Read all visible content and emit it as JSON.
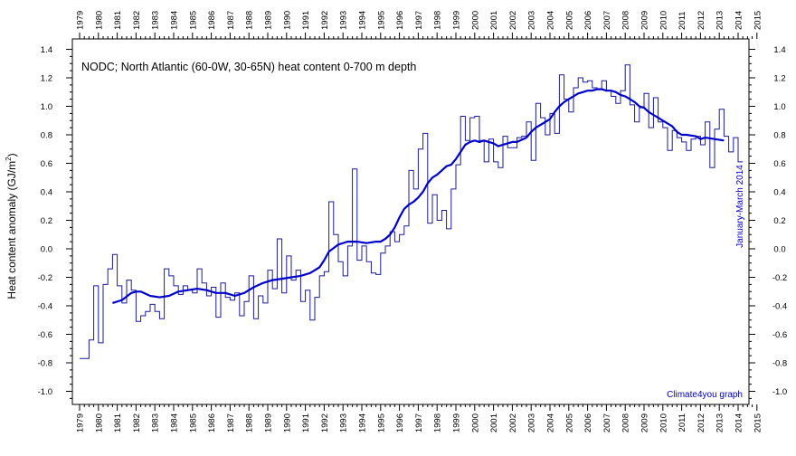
{
  "chart_data": {
    "type": "line",
    "title": "NODC; North Atlantic (60-0W, 30-65N) heat content 0-700 m depth",
    "ylabel": "Heat content anomaly (GJ/m²)",
    "ylabel_main": "Heat content anomaly (GJ/m",
    "ylabel_sup": "2",
    "ylabel_end": ")",
    "credit": "Climate4you graph",
    "annotation": "January-March 2014",
    "xlim": [
      1979,
      2015
    ],
    "ylim": [
      -1.1,
      1.4
    ],
    "grid": false,
    "x_ticks": [
      "1979",
      "1980",
      "1981",
      "1982",
      "1983",
      "1984",
      "1985",
      "1986",
      "1987",
      "1988",
      "1989",
      "1990",
      "1991",
      "1992",
      "1993",
      "1994",
      "1995",
      "1996",
      "1997",
      "1998",
      "1999",
      "2000",
      "2001",
      "2002",
      "2003",
      "2004",
      "2005",
      "2006",
      "2007",
      "2008",
      "2009",
      "2010",
      "2011",
      "2012",
      "2013",
      "2014",
      "2015"
    ],
    "y_ticks": [
      "1.4",
      "1.2",
      "1.0",
      "0.8",
      "0.6",
      "0.4",
      "0.2",
      "0.0",
      "-0.2",
      "-0.4",
      "-0.6",
      "-0.8",
      "-1.0"
    ],
    "series": [
      {
        "style": "step",
        "color": "#1a1aa0",
        "x": [
          1979.0,
          1979.25,
          1979.5,
          1979.75,
          1980.0,
          1980.25,
          1980.5,
          1980.75,
          1981.0,
          1981.25,
          1981.5,
          1981.75,
          1982.0,
          1982.25,
          1982.5,
          1982.75,
          1983.0,
          1983.25,
          1983.5,
          1983.75,
          1984.0,
          1984.25,
          1984.5,
          1984.75,
          1985.0,
          1985.25,
          1985.5,
          1985.75,
          1986.0,
          1986.25,
          1986.5,
          1986.75,
          1987.0,
          1987.25,
          1987.5,
          1987.75,
          1988.0,
          1988.25,
          1988.5,
          1988.75,
          1989.0,
          1989.25,
          1989.5,
          1989.75,
          1990.0,
          1990.25,
          1990.5,
          1990.75,
          1991.0,
          1991.25,
          1991.5,
          1991.75,
          1992.0,
          1992.25,
          1992.5,
          1992.75,
          1993.0,
          1993.25,
          1993.5,
          1993.75,
          1994.0,
          1994.25,
          1994.5,
          1994.75,
          1995.0,
          1995.25,
          1995.5,
          1995.75,
          1996.0,
          1996.25,
          1996.5,
          1996.75,
          1997.0,
          1997.25,
          1997.5,
          1997.75,
          1998.0,
          1998.25,
          1998.5,
          1998.75,
          1999.0,
          1999.25,
          1999.5,
          1999.75,
          2000.0,
          2000.25,
          2000.5,
          2000.75,
          2001.0,
          2001.25,
          2001.5,
          2001.75,
          2002.0,
          2002.25,
          2002.5,
          2002.75,
          2003.0,
          2003.25,
          2003.5,
          2003.75,
          2004.0,
          2004.25,
          2004.5,
          2004.75,
          2005.0,
          2005.25,
          2005.5,
          2005.75,
          2006.0,
          2006.25,
          2006.5,
          2006.75,
          2007.0,
          2007.25,
          2007.5,
          2007.75,
          2008.0,
          2008.25,
          2008.5,
          2008.75,
          2009.0,
          2009.25,
          2009.5,
          2009.75,
          2010.0,
          2010.25,
          2010.5,
          2010.75,
          2011.0,
          2011.25,
          2011.5,
          2011.75,
          2012.0,
          2012.25,
          2012.5,
          2012.75,
          2013.0,
          2013.25,
          2013.5,
          2013.75,
          2014.0
        ],
        "values": [
          -0.77,
          -0.77,
          -0.64,
          -0.26,
          -0.66,
          -0.25,
          -0.14,
          -0.04,
          -0.26,
          -0.38,
          -0.22,
          -0.29,
          -0.51,
          -0.47,
          -0.44,
          -0.39,
          -0.44,
          -0.49,
          -0.14,
          -0.19,
          -0.26,
          -0.32,
          -0.26,
          -0.29,
          -0.31,
          -0.14,
          -0.24,
          -0.33,
          -0.27,
          -0.48,
          -0.24,
          -0.34,
          -0.36,
          -0.31,
          -0.47,
          -0.37,
          -0.19,
          -0.49,
          -0.33,
          -0.38,
          -0.15,
          -0.28,
          0.07,
          -0.31,
          -0.05,
          -0.22,
          -0.15,
          -0.37,
          -0.29,
          -0.5,
          -0.34,
          -0.19,
          -0.16,
          0.33,
          0.1,
          -0.09,
          -0.19,
          0.02,
          0.56,
          -0.08,
          0.02,
          -0.09,
          -0.17,
          -0.18,
          -0.03,
          0.02,
          0.12,
          0.05,
          0.1,
          0.16,
          0.55,
          0.42,
          0.7,
          0.81,
          0.18,
          0.38,
          0.2,
          0.27,
          0.14,
          0.42,
          0.59,
          0.93,
          0.76,
          0.92,
          0.93,
          0.76,
          0.61,
          0.77,
          0.61,
          0.57,
          0.79,
          0.71,
          0.71,
          0.78,
          0.79,
          0.89,
          0.62,
          1.02,
          0.92,
          0.8,
          0.95,
          0.81,
          1.22,
          1.05,
          0.96,
          1.13,
          1.2,
          1.17,
          1.18,
          1.13,
          1.12,
          1.18,
          1.11,
          1.07,
          1.02,
          1.11,
          1.29,
          1.01,
          0.89,
          0.99,
          1.09,
          0.85,
          1.06,
          0.89,
          0.85,
          0.69,
          0.83,
          0.78,
          0.75,
          0.69,
          0.77,
          0.79,
          0.73,
          0.89,
          0.57,
          0.84,
          0.98,
          0.79,
          0.68,
          0.78,
          0.61
        ]
      },
      {
        "style": "line",
        "color": "#0000cc",
        "x": [
          1980.75,
          1981.25,
          1981.75,
          1982.0,
          1982.25,
          1982.75,
          1983.25,
          1983.75,
          1984.25,
          1984.75,
          1985.25,
          1985.75,
          1986.25,
          1986.75,
          1987.25,
          1987.75,
          1988.25,
          1988.75,
          1989.25,
          1989.75,
          1990.25,
          1990.75,
          1991.25,
          1991.75,
          1992.0,
          1992.25,
          1992.75,
          1993.25,
          1993.75,
          1994.25,
          1994.75,
          1995.0,
          1995.25,
          1995.5,
          1995.75,
          1996.0,
          1996.25,
          1996.5,
          1996.75,
          1997.0,
          1997.25,
          1997.5,
          1997.75,
          1998.0,
          1998.25,
          1998.5,
          1998.75,
          1999.0,
          1999.25,
          1999.5,
          1999.75,
          2000.0,
          2000.25,
          2000.5,
          2000.75,
          2001.0,
          2001.25,
          2001.75,
          2002.0,
          2002.25,
          2002.75,
          2003.0,
          2003.25,
          2003.5,
          2003.75,
          2004.0,
          2004.25,
          2004.5,
          2004.75,
          2005.0,
          2005.25,
          2005.5,
          2005.75,
          2006.0,
          2006.25,
          2006.5,
          2006.75,
          2007.0,
          2007.25,
          2007.5,
          2007.75,
          2008.0,
          2008.25,
          2008.5,
          2008.75,
          2009.0,
          2009.25,
          2009.5,
          2009.75,
          2010.0,
          2010.25,
          2010.5,
          2010.75,
          2011.0,
          2011.25,
          2011.75,
          2012.0,
          2012.25,
          2012.75,
          2013.25
        ],
        "values": [
          -0.38,
          -0.36,
          -0.31,
          -0.3,
          -0.3,
          -0.33,
          -0.34,
          -0.33,
          -0.3,
          -0.29,
          -0.28,
          -0.29,
          -0.31,
          -0.31,
          -0.33,
          -0.31,
          -0.27,
          -0.24,
          -0.22,
          -0.21,
          -0.2,
          -0.19,
          -0.17,
          -0.13,
          -0.08,
          -0.02,
          0.03,
          0.05,
          0.05,
          0.04,
          0.05,
          0.05,
          0.07,
          0.1,
          0.15,
          0.22,
          0.28,
          0.31,
          0.33,
          0.36,
          0.4,
          0.46,
          0.5,
          0.52,
          0.55,
          0.58,
          0.59,
          0.63,
          0.68,
          0.73,
          0.75,
          0.76,
          0.75,
          0.76,
          0.75,
          0.74,
          0.72,
          0.74,
          0.75,
          0.75,
          0.78,
          0.82,
          0.85,
          0.87,
          0.89,
          0.91,
          0.96,
          1.0,
          1.03,
          1.05,
          1.07,
          1.09,
          1.1,
          1.11,
          1.11,
          1.12,
          1.12,
          1.11,
          1.11,
          1.1,
          1.08,
          1.07,
          1.05,
          1.03,
          1.0,
          0.99,
          0.96,
          0.94,
          0.92,
          0.9,
          0.88,
          0.86,
          0.82,
          0.8,
          0.8,
          0.79,
          0.77,
          0.78,
          0.77,
          0.76
        ]
      }
    ]
  }
}
